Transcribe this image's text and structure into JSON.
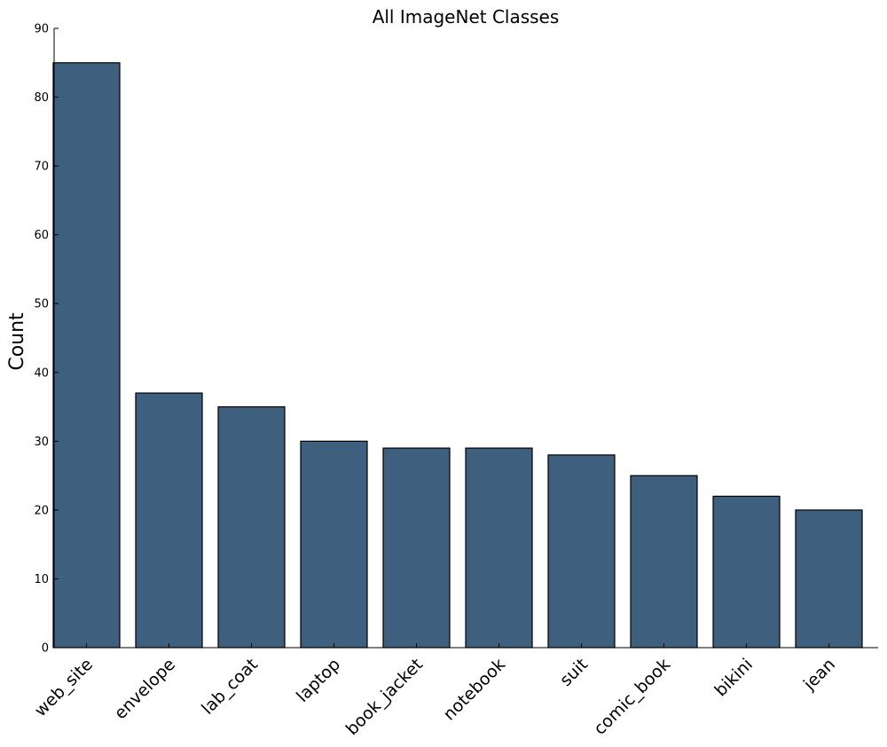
{
  "chart_data": {
    "type": "bar",
    "title": "All ImageNet Classes",
    "xlabel": "",
    "ylabel": "Count",
    "categories": [
      "web_site",
      "envelope",
      "lab_coat",
      "laptop",
      "book_jacket",
      "notebook",
      "suit",
      "comic_book",
      "bikini",
      "jean"
    ],
    "values": [
      85,
      37,
      35,
      30,
      29,
      29,
      28,
      25,
      22,
      20
    ],
    "ylim": [
      0,
      90
    ],
    "yticks": [
      0,
      10,
      20,
      30,
      40,
      50,
      60,
      70,
      80,
      90
    ],
    "grid": false,
    "legend": "none",
    "bar_color": "#3f5f7f",
    "edge_color": "#000000"
  }
}
